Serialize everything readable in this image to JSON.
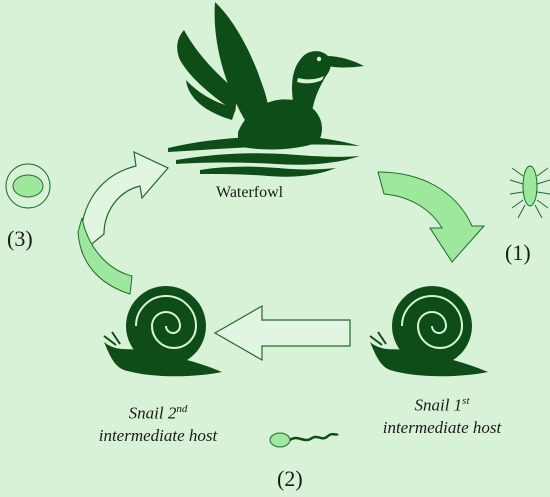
{
  "hosts": {
    "definitive": "Waterfowl",
    "snail_first": {
      "word": "Snail",
      "ordinal_num": "1",
      "ordinal_sup": "st",
      "role": "intermediate host"
    },
    "snail_second": {
      "word": "Snail",
      "ordinal_num": "2",
      "ordinal_sup": "nd",
      "role": "intermediate host"
    }
  },
  "stages": {
    "stage1": "(1)",
    "stage2": "(2)",
    "stage3": "(3)"
  },
  "colors": {
    "background": "#d8f2d8",
    "dark_green": "#0f4d18",
    "light_green": "#9ee89e",
    "outline_green": "#1e6b2a"
  }
}
